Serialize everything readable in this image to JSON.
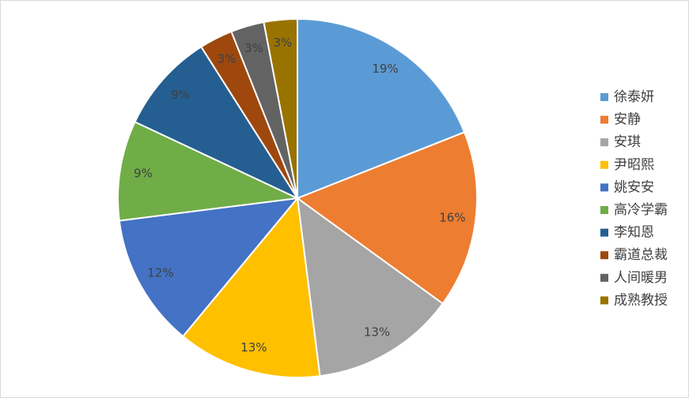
{
  "chart_data": {
    "type": "pie",
    "categories": [
      "徐泰妍",
      "安静",
      "安琪",
      "尹昭熙",
      "姚安安",
      "高冷学霸",
      "李知恩",
      "霸道总裁",
      "人间暖男",
      "成熟教授"
    ],
    "values": [
      19,
      16,
      13,
      13,
      12,
      9,
      9,
      3,
      3,
      3
    ],
    "value_labels": [
      "19%",
      "16%",
      "13%",
      "13%",
      "12%",
      "9%",
      "9%",
      "3%",
      "3%",
      "3%"
    ],
    "colors": [
      "#5b9bd5",
      "#ed7d31",
      "#a5a5a5",
      "#ffc000",
      "#4472c4",
      "#70ad47",
      "#255e91",
      "#9e480e",
      "#636363",
      "#997300"
    ],
    "legend": "right"
  }
}
